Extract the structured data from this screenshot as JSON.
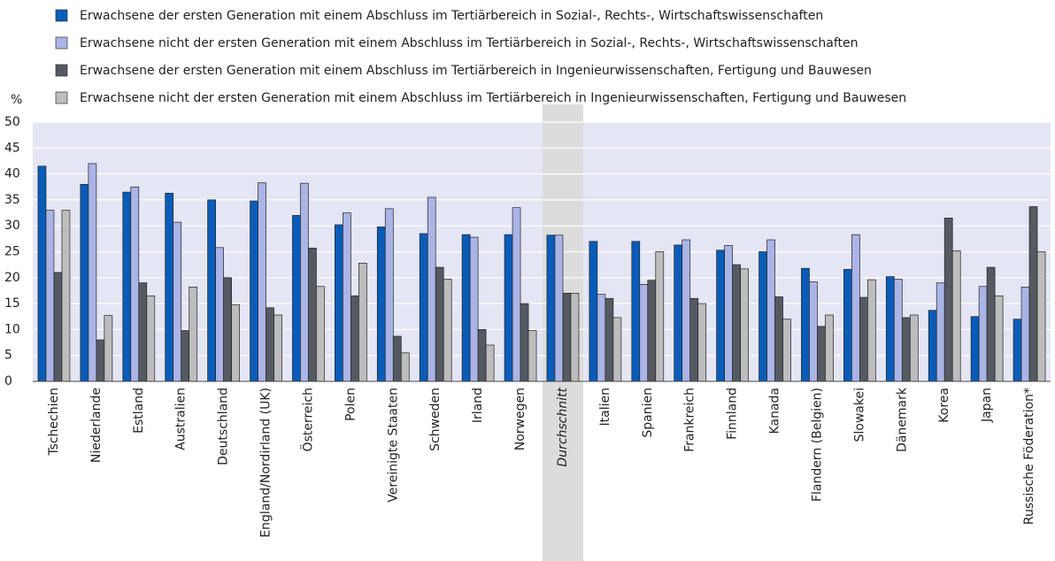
{
  "chart_data": {
    "type": "bar",
    "y_axis_label": "%",
    "categories": [
      "Tschechien",
      "Niederlande",
      "Estland",
      "Australien",
      "Deutschland",
      "England/Nordirland (UK)",
      "Österreich",
      "Polen",
      "Vereinigte Staaten",
      "Schweden",
      "Irland",
      "Norwegen",
      "Durchschnitt",
      "Italien",
      "Spanien",
      "Frankreich",
      "Finnland",
      "Kanada",
      "Flandern (Belgien)",
      "Slowakei",
      "Dänemark",
      "Korea",
      "Japan",
      "Russische Föderation*"
    ],
    "highlight_index": 12,
    "series": [
      {
        "name": "Erwachsene der ersten Generation mit einem Abschluss im Tertiärbereich in Sozial-, Rechts-, Wirtschaftswissenschaften",
        "color": "#0a5cb8",
        "values": [
          41.5,
          38,
          36.5,
          36.3,
          35,
          34.8,
          32,
          30.2,
          29.8,
          28.5,
          28.3,
          28.3,
          28.2,
          27,
          27,
          26.3,
          25.3,
          25,
          21.8,
          21.6,
          20.2,
          13.7,
          12.5,
          12
        ]
      },
      {
        "name": "Erwachsene nicht der ersten Generation mit einem Abschluss im Tertiärbereich in Sozial-, Rechts-, Wirtschaftswissenschaften",
        "color": "#aab4e6",
        "values": [
          33,
          42,
          37.5,
          30.7,
          25.8,
          38.3,
          38.2,
          32.5,
          33.3,
          35.5,
          27.8,
          33.5,
          28.2,
          16.8,
          18.7,
          27.3,
          26.2,
          27.3,
          19.2,
          28.3,
          19.7,
          19,
          18.3,
          18.2
        ]
      },
      {
        "name": "Erwachsene der ersten Generation mit einem Abschluss im Tertiärbereich in Ingenieurwissenschaften, Fertigung und Bauwesen",
        "color": "#555a62",
        "values": [
          21,
          8,
          19,
          9.8,
          20,
          14.2,
          25.7,
          16.5,
          8.7,
          22,
          10,
          15,
          17,
          16,
          19.5,
          16,
          22.5,
          16.3,
          10.6,
          16.2,
          12.3,
          31.5,
          22,
          33.7
        ]
      },
      {
        "name": "Erwachsene nicht der ersten Generation mit einem Abschluss im Tertiärbereich in Ingenieurwissenschaften, Fertigung und Bauwesen",
        "color": "#bdbdbd",
        "values": [
          33,
          12.7,
          16.5,
          18.2,
          14.8,
          12.8,
          18.3,
          22.8,
          5.5,
          19.7,
          7,
          9.8,
          17,
          12.3,
          25,
          15,
          21.7,
          12,
          12.8,
          19.6,
          12.8,
          25.2,
          16.5,
          25
        ]
      }
    ],
    "ylim": [
      0,
      50
    ],
    "yticks": [
      0,
      5,
      10,
      15,
      20,
      25,
      30,
      35,
      40,
      45,
      50
    ],
    "grid": true
  }
}
